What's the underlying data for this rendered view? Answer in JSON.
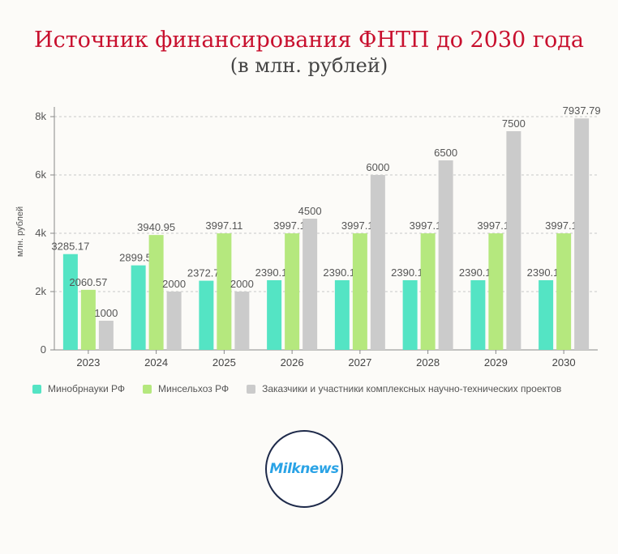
{
  "title": "Источник финансирования ФНТП до 2030 года",
  "subtitle": "(в млн. рублей)",
  "logo_text": "Milknews",
  "colors": {
    "minobr": "#54e4c4",
    "minselhoz": "#b5e87e",
    "zakazchiki": "#cbcbcb"
  },
  "chart_data": {
    "type": "bar",
    "categories": [
      "2023",
      "2024",
      "2025",
      "2026",
      "2027",
      "2028",
      "2029",
      "2030"
    ],
    "ylabel": "млн. рублей",
    "ylim": [
      0,
      8000
    ],
    "yticks": [
      0,
      2000,
      4000,
      6000,
      8000
    ],
    "ytick_labels": [
      "0",
      "2k",
      "4k",
      "6k",
      "8k"
    ],
    "grid": true,
    "legend_position": "bottom-left",
    "series": [
      {
        "name": "Минобрнауки РФ",
        "color": "#54e4c4",
        "values": [
          3285.17,
          2899.52,
          2372.72,
          2390.17,
          2390.17,
          2390.17,
          2390.17,
          2390.17
        ]
      },
      {
        "name": "Минсельхоз РФ",
        "color": "#b5e87e",
        "values": [
          2060.57,
          3940.95,
          3997.11,
          3997.11,
          3997.11,
          3997.11,
          3997.11,
          3997.11
        ]
      },
      {
        "name": "Заказчики и участники комплексных научно-технических проектов",
        "color": "#cbcbcb",
        "values": [
          1000,
          2000,
          2000,
          4500,
          6000,
          6500,
          7500,
          7937.79
        ]
      }
    ],
    "value_labels": [
      [
        "3285.17",
        "2899.52",
        "2372.72",
        "2390.17",
        "2390.17",
        "2390.17",
        "2390.17",
        "2390.17"
      ],
      [
        "2060.57",
        "3940.95",
        "3997.11",
        "3997.11",
        "3997.11",
        "3997.11",
        "3997.11",
        "3997.11"
      ],
      [
        "1000",
        "2000",
        "2000",
        "4500",
        "6000",
        "6500",
        "7500",
        "7937.79"
      ]
    ]
  }
}
